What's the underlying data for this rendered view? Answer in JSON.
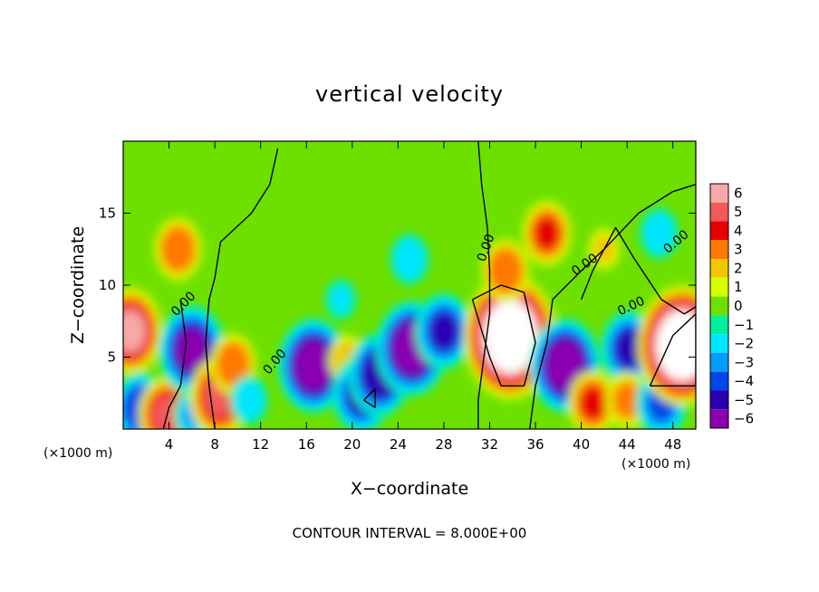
{
  "chart_data": {
    "type": "heatmap",
    "title": "vertical velocity",
    "xlabel": "X−coordinate",
    "ylabel": "Z−coordinate",
    "x_unit": "(×1000 m)",
    "xlim": [
      0,
      50
    ],
    "ylim": [
      0,
      20
    ],
    "x_ticks": [
      4,
      8,
      12,
      16,
      20,
      24,
      28,
      32,
      36,
      40,
      44,
      48
    ],
    "y_ticks": [
      5,
      10,
      15
    ],
    "footer": "CONTOUR INTERVAL = 8.000E+00",
    "contour_label": "0.00",
    "colorbar": {
      "levels": [
        6,
        5,
        4,
        3,
        2,
        1,
        0,
        -1,
        -2,
        -3,
        -4,
        -5,
        -6
      ],
      "labels": [
        "6",
        "5",
        "4",
        "3",
        "2",
        "1",
        "0",
        "−1",
        "−2",
        "−3",
        "−4",
        "−5",
        "−6"
      ],
      "colors": [
        "#f7a8a8",
        "#f25a5a",
        "#e60000",
        "#ff7800",
        "#f0c800",
        "#d8ff00",
        "#6ee000",
        "#00f09a",
        "#00e6ff",
        "#009cff",
        "#0046e6",
        "#2a00b4",
        "#8a00b0"
      ]
    },
    "features": [
      {
        "x": 0.6,
        "z": 6.8,
        "w": 5.5
      },
      {
        "x": 1.5,
        "z": 1.4,
        "w": -4.3
      },
      {
        "x": 3.8,
        "z": 1.0,
        "w": 4.5
      },
      {
        "x": 4.8,
        "z": 12.5,
        "w": 3.4
      },
      {
        "x": 6.0,
        "z": 5.5,
        "w": -5.8
      },
      {
        "x": 6.2,
        "z": 1.0,
        "w": -2.6
      },
      {
        "x": 8.4,
        "z": 2.2,
        "w": 5.0
      },
      {
        "x": 9.6,
        "z": 4.5,
        "w": 3.2
      },
      {
        "x": 11.0,
        "z": 2.0,
        "w": -2.2
      },
      {
        "x": 16.6,
        "z": 4.4,
        "w": -6.2
      },
      {
        "x": 19.6,
        "z": 4.8,
        "w": 2.2
      },
      {
        "x": 20.8,
        "z": 2.4,
        "w": -4.8
      },
      {
        "x": 22.4,
        "z": 3.8,
        "w": -5.2
      },
      {
        "x": 25.2,
        "z": 5.6,
        "w": -6.3
      },
      {
        "x": 28.0,
        "z": 6.8,
        "w": -4.6
      },
      {
        "x": 25.0,
        "z": 11.8,
        "w": -2.4
      },
      {
        "x": 19.0,
        "z": 9.0,
        "w": -1.6
      },
      {
        "x": 33.8,
        "z": 6.4,
        "w": 9.0
      },
      {
        "x": 33.4,
        "z": 11.0,
        "w": 3.4
      },
      {
        "x": 37.0,
        "z": 13.6,
        "w": 3.6
      },
      {
        "x": 38.6,
        "z": 4.4,
        "w": -6.2
      },
      {
        "x": 41.0,
        "z": 1.8,
        "w": 3.6
      },
      {
        "x": 44.2,
        "z": 5.6,
        "w": -4.6
      },
      {
        "x": 44.0,
        "z": 2.0,
        "w": 3.0
      },
      {
        "x": 47.0,
        "z": 1.8,
        "w": -4.0
      },
      {
        "x": 48.8,
        "z": 5.8,
        "w": 8.5
      },
      {
        "x": 46.8,
        "z": 13.6,
        "w": -2.4
      },
      {
        "x": 42.0,
        "z": 12.5,
        "w": 1.6
      }
    ]
  }
}
